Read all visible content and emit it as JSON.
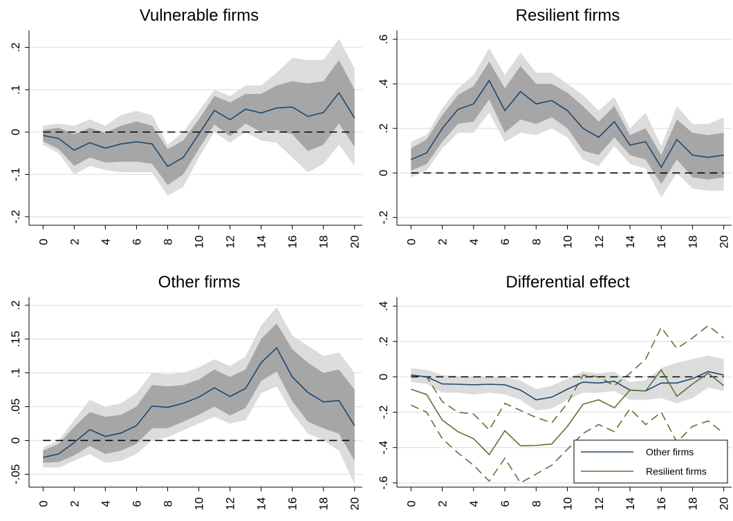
{
  "chart_data": [
    {
      "type": "line",
      "title": "Vulnerable firms",
      "x": [
        0,
        1,
        2,
        3,
        4,
        5,
        6,
        7,
        8,
        9,
        10,
        11,
        12,
        13,
        14,
        15,
        16,
        17,
        18,
        19,
        20
      ],
      "xlim": [
        -0.9,
        20.5
      ],
      "xticks": [
        0,
        2,
        4,
        6,
        8,
        10,
        12,
        14,
        16,
        18,
        20
      ],
      "ylim": [
        -0.22,
        0.24
      ],
      "yticks": [
        {
          "value": -0.2,
          "label": "-.2"
        },
        {
          "value": -0.1,
          "label": "-.1"
        },
        0,
        {
          "value": 0.1,
          "label": ".1"
        },
        {
          "value": 0.2,
          "label": ".2"
        }
      ],
      "grid": true,
      "zero_line": true,
      "series": [
        {
          "color": "#1a476f",
          "values": [
            -0.008,
            -0.015,
            -0.043,
            -0.025,
            -0.038,
            -0.028,
            -0.023,
            -0.028,
            -0.081,
            -0.06,
            -0.005,
            0.051,
            0.029,
            0.054,
            0.045,
            0.057,
            0.059,
            0.037,
            0.046,
            0.093,
            0.033
          ],
          "bands": [
            {
              "color": "#dcdcdc",
              "style": "fill",
              "upper": [
                0.015,
                0.02,
                0.015,
                0.03,
                0.015,
                0.04,
                0.05,
                0.04,
                -0.03,
                0.0,
                0.05,
                0.1,
                0.085,
                0.11,
                0.11,
                0.14,
                0.175,
                0.17,
                0.17,
                0.22,
                0.15
              ],
              "lower": [
                -0.03,
                -0.05,
                -0.1,
                -0.08,
                -0.09,
                -0.095,
                -0.095,
                -0.095,
                -0.15,
                -0.13,
                -0.06,
                0.0,
                -0.025,
                0.0,
                -0.02,
                -0.025,
                -0.06,
                -0.095,
                -0.075,
                -0.03,
                -0.08
              ]
            },
            {
              "color": "#a6a6a6",
              "style": "fill",
              "upper": [
                0.005,
                0.01,
                -0.005,
                0.01,
                -0.002,
                0.015,
                0.025,
                0.015,
                -0.04,
                -0.02,
                0.03,
                0.085,
                0.07,
                0.09,
                0.09,
                0.11,
                0.12,
                0.115,
                0.12,
                0.17,
                0.1
              ],
              "lower": [
                -0.022,
                -0.04,
                -0.08,
                -0.06,
                -0.072,
                -0.07,
                -0.07,
                -0.075,
                -0.125,
                -0.1,
                -0.04,
                0.018,
                -0.01,
                0.02,
                0.0,
                0.005,
                -0.005,
                -0.045,
                -0.03,
                0.02,
                -0.035
              ]
            }
          ]
        }
      ]
    },
    {
      "type": "line",
      "title": "Resilient firms",
      "x": [
        0,
        1,
        2,
        3,
        4,
        5,
        6,
        7,
        8,
        9,
        10,
        11,
        12,
        13,
        14,
        15,
        16,
        17,
        18,
        19,
        20
      ],
      "xlim": [
        -0.9,
        20.5
      ],
      "xticks": [
        0,
        2,
        4,
        6,
        8,
        10,
        12,
        14,
        16,
        18,
        20
      ],
      "ylim": [
        -0.235,
        0.64
      ],
      "yticks": [
        {
          "value": -0.2,
          "label": "-.2"
        },
        0,
        {
          "value": 0.2,
          "label": ".2"
        },
        {
          "value": 0.4,
          "label": ".4"
        },
        {
          "value": 0.6,
          "label": ".6"
        }
      ],
      "grid": true,
      "zero_line": true,
      "series": [
        {
          "color": "#1a476f",
          "values": [
            0.06,
            0.09,
            0.2,
            0.285,
            0.31,
            0.415,
            0.28,
            0.365,
            0.31,
            0.325,
            0.28,
            0.2,
            0.16,
            0.23,
            0.125,
            0.14,
            0.025,
            0.15,
            0.08,
            0.07,
            0.08
          ],
          "bands": [
            {
              "color": "#dcdcdc",
              "style": "fill",
              "upper": [
                0.14,
                0.17,
                0.29,
                0.38,
                0.44,
                0.56,
                0.44,
                0.54,
                0.45,
                0.45,
                0.4,
                0.35,
                0.28,
                0.34,
                0.2,
                0.27,
                0.12,
                0.3,
                0.22,
                0.22,
                0.25
              ],
              "lower": [
                -0.02,
                0.01,
                0.11,
                0.18,
                0.18,
                0.27,
                0.14,
                0.18,
                0.17,
                0.2,
                0.16,
                0.06,
                0.03,
                0.12,
                0.04,
                0.02,
                -0.11,
                0.0,
                -0.07,
                -0.08,
                -0.08
              ]
            },
            {
              "color": "#a6a6a6",
              "style": "fill",
              "upper": [
                0.11,
                0.15,
                0.26,
                0.35,
                0.39,
                0.5,
                0.38,
                0.48,
                0.4,
                0.4,
                0.36,
                0.3,
                0.23,
                0.3,
                0.17,
                0.2,
                0.08,
                0.24,
                0.18,
                0.17,
                0.18
              ],
              "lower": [
                0.01,
                0.04,
                0.14,
                0.22,
                0.23,
                0.33,
                0.18,
                0.24,
                0.22,
                0.25,
                0.2,
                0.1,
                0.08,
                0.16,
                0.08,
                0.06,
                -0.05,
                0.06,
                -0.02,
                -0.03,
                -0.02
              ]
            }
          ]
        }
      ]
    },
    {
      "type": "line",
      "title": "Other firms",
      "x": [
        0,
        1,
        2,
        3,
        4,
        5,
        6,
        7,
        8,
        9,
        10,
        11,
        12,
        13,
        14,
        15,
        16,
        17,
        18,
        19,
        20
      ],
      "xlim": [
        -0.9,
        20.5
      ],
      "xticks": [
        0,
        2,
        4,
        6,
        8,
        10,
        12,
        14,
        16,
        18,
        20
      ],
      "ylim": [
        -0.069,
        0.212
      ],
      "yticks": [
        {
          "value": -0.05,
          "label": "-.05"
        },
        0,
        {
          "value": 0.05,
          "label": ".05"
        },
        {
          "value": 0.1,
          "label": ".1"
        },
        {
          "value": 0.15,
          "label": ".15"
        },
        {
          "value": 0.2,
          "label": ".2"
        }
      ],
      "grid": true,
      "zero_line": true,
      "series": [
        {
          "color": "#1a476f",
          "values": [
            -0.025,
            -0.02,
            -0.003,
            0.016,
            0.006,
            0.011,
            0.022,
            0.051,
            0.049,
            0.055,
            0.064,
            0.078,
            0.065,
            0.077,
            0.115,
            0.137,
            0.094,
            0.071,
            0.057,
            0.059,
            0.022
          ],
          "bands": [
            {
              "color": "#dcdcdc",
              "style": "fill",
              "upper": [
                -0.01,
                0.0,
                0.03,
                0.06,
                0.05,
                0.055,
                0.07,
                0.1,
                0.098,
                0.1,
                0.108,
                0.12,
                0.11,
                0.124,
                0.17,
                0.197,
                0.155,
                0.14,
                0.125,
                0.13,
                0.1
              ],
              "lower": [
                -0.04,
                -0.04,
                -0.03,
                -0.02,
                -0.033,
                -0.03,
                -0.02,
                0.0,
                0.005,
                0.015,
                0.025,
                0.035,
                0.025,
                0.03,
                0.07,
                0.08,
                0.04,
                0.01,
                0.0,
                -0.015,
                -0.065
              ]
            },
            {
              "color": "#a6a6a6",
              "style": "fill",
              "upper": [
                -0.015,
                -0.005,
                0.02,
                0.042,
                0.035,
                0.038,
                0.05,
                0.082,
                0.08,
                0.082,
                0.09,
                0.105,
                0.094,
                0.105,
                0.15,
                0.173,
                0.135,
                0.115,
                0.1,
                0.105,
                0.075
              ],
              "lower": [
                -0.033,
                -0.032,
                -0.022,
                -0.008,
                -0.02,
                -0.015,
                -0.005,
                0.018,
                0.018,
                0.028,
                0.038,
                0.05,
                0.037,
                0.048,
                0.088,
                0.102,
                0.058,
                0.028,
                0.018,
                0.01,
                -0.03
              ]
            }
          ]
        }
      ]
    },
    {
      "type": "line",
      "title": "Differential effect",
      "x": [
        0,
        1,
        2,
        3,
        4,
        5,
        6,
        7,
        8,
        9,
        10,
        11,
        12,
        13,
        14,
        15,
        16,
        17,
        18,
        19,
        20
      ],
      "xlim": [
        -0.9,
        20.5
      ],
      "xticks": [
        0,
        2,
        4,
        6,
        8,
        10,
        12,
        14,
        16,
        18,
        20
      ],
      "ylim": [
        -0.624,
        0.451
      ],
      "yticks": [
        {
          "value": -0.6,
          "label": "-.6"
        },
        {
          "value": -0.4,
          "label": "-.4"
        },
        {
          "value": -0.2,
          "label": "-.2"
        },
        0,
        {
          "value": 0.2,
          "label": ".2"
        },
        {
          "value": 0.4,
          "label": ".4"
        }
      ],
      "grid": true,
      "zero_line": true,
      "legend": "lower right",
      "series": [
        {
          "name": "Other firms",
          "color": "#1a476f",
          "values": [
            0.01,
            0.0,
            -0.04,
            -0.042,
            -0.045,
            -0.042,
            -0.045,
            -0.075,
            -0.13,
            -0.115,
            -0.07,
            -0.03,
            -0.035,
            -0.025,
            -0.075,
            -0.08,
            -0.035,
            -0.035,
            -0.01,
            0.03,
            0.01
          ],
          "bands": [
            {
              "color": "#dcdcdc",
              "style": "fill",
              "upper": [
                0.05,
                0.04,
                0.01,
                0.005,
                0.0,
                0.0,
                0.0,
                -0.02,
                -0.07,
                -0.05,
                -0.01,
                0.03,
                0.02,
                0.03,
                -0.03,
                -0.02,
                0.05,
                0.08,
                0.1,
                0.12,
                0.1
              ],
              "lower": [
                -0.03,
                -0.04,
                -0.09,
                -0.09,
                -0.1,
                -0.09,
                -0.1,
                -0.13,
                -0.19,
                -0.18,
                -0.13,
                -0.09,
                -0.09,
                -0.08,
                -0.13,
                -0.13,
                -0.12,
                -0.15,
                -0.12,
                -0.06,
                -0.08
              ]
            }
          ]
        },
        {
          "name": "Resilient firms",
          "color": "#55752f",
          "values": [
            -0.07,
            -0.1,
            -0.245,
            -0.31,
            -0.35,
            -0.44,
            -0.305,
            -0.39,
            -0.388,
            -0.38,
            -0.28,
            -0.155,
            -0.13,
            -0.175,
            -0.075,
            -0.08,
            0.04,
            -0.11,
            -0.04,
            0.02,
            -0.05
          ],
          "bands": [
            {
              "color": "#55752f",
              "style": "dashed",
              "upper": [
                0.01,
                0.0,
                -0.14,
                -0.2,
                -0.21,
                -0.3,
                -0.15,
                -0.19,
                -0.23,
                -0.26,
                -0.15,
                0.01,
                0.0,
                -0.05,
                0.02,
                0.1,
                0.28,
                0.16,
                0.22,
                0.29,
                0.22
              ],
              "lower": [
                -0.16,
                -0.2,
                -0.35,
                -0.43,
                -0.5,
                -0.59,
                -0.46,
                -0.6,
                -0.55,
                -0.5,
                -0.41,
                -0.32,
                -0.27,
                -0.31,
                -0.18,
                -0.27,
                -0.2,
                -0.37,
                -0.28,
                -0.25,
                -0.32
              ]
            }
          ]
        }
      ]
    }
  ]
}
